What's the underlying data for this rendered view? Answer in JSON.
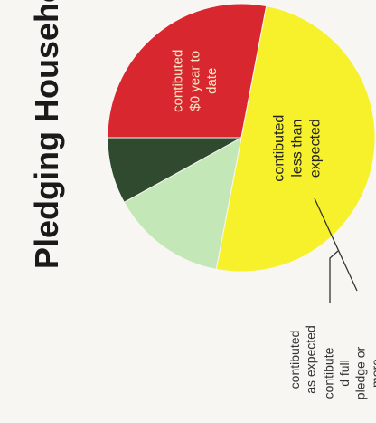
{
  "chart_data": {
    "type": "pie",
    "title": "Pledging Households",
    "slices": [
      {
        "label": "contibuted $0 year to date",
        "lines": [
          "contibuted",
          "$0 year to",
          "date"
        ],
        "value": 28,
        "color": "#d8272f"
      },
      {
        "label": "contibuted less than expected",
        "lines": [
          "contibuted",
          "less than",
          "expected"
        ],
        "value": 50,
        "color": "#f6f12b"
      },
      {
        "label": "contibuted as expected",
        "lines": [
          "contibuted",
          "as expected"
        ],
        "value": 14,
        "color": "#c4e7b8"
      },
      {
        "label": "contibute d full pledge or more",
        "lines": [
          "contibute",
          "d full",
          "pledge or",
          "more"
        ],
        "value": 8,
        "color": "#2f4a2e"
      }
    ],
    "legend": "none"
  }
}
